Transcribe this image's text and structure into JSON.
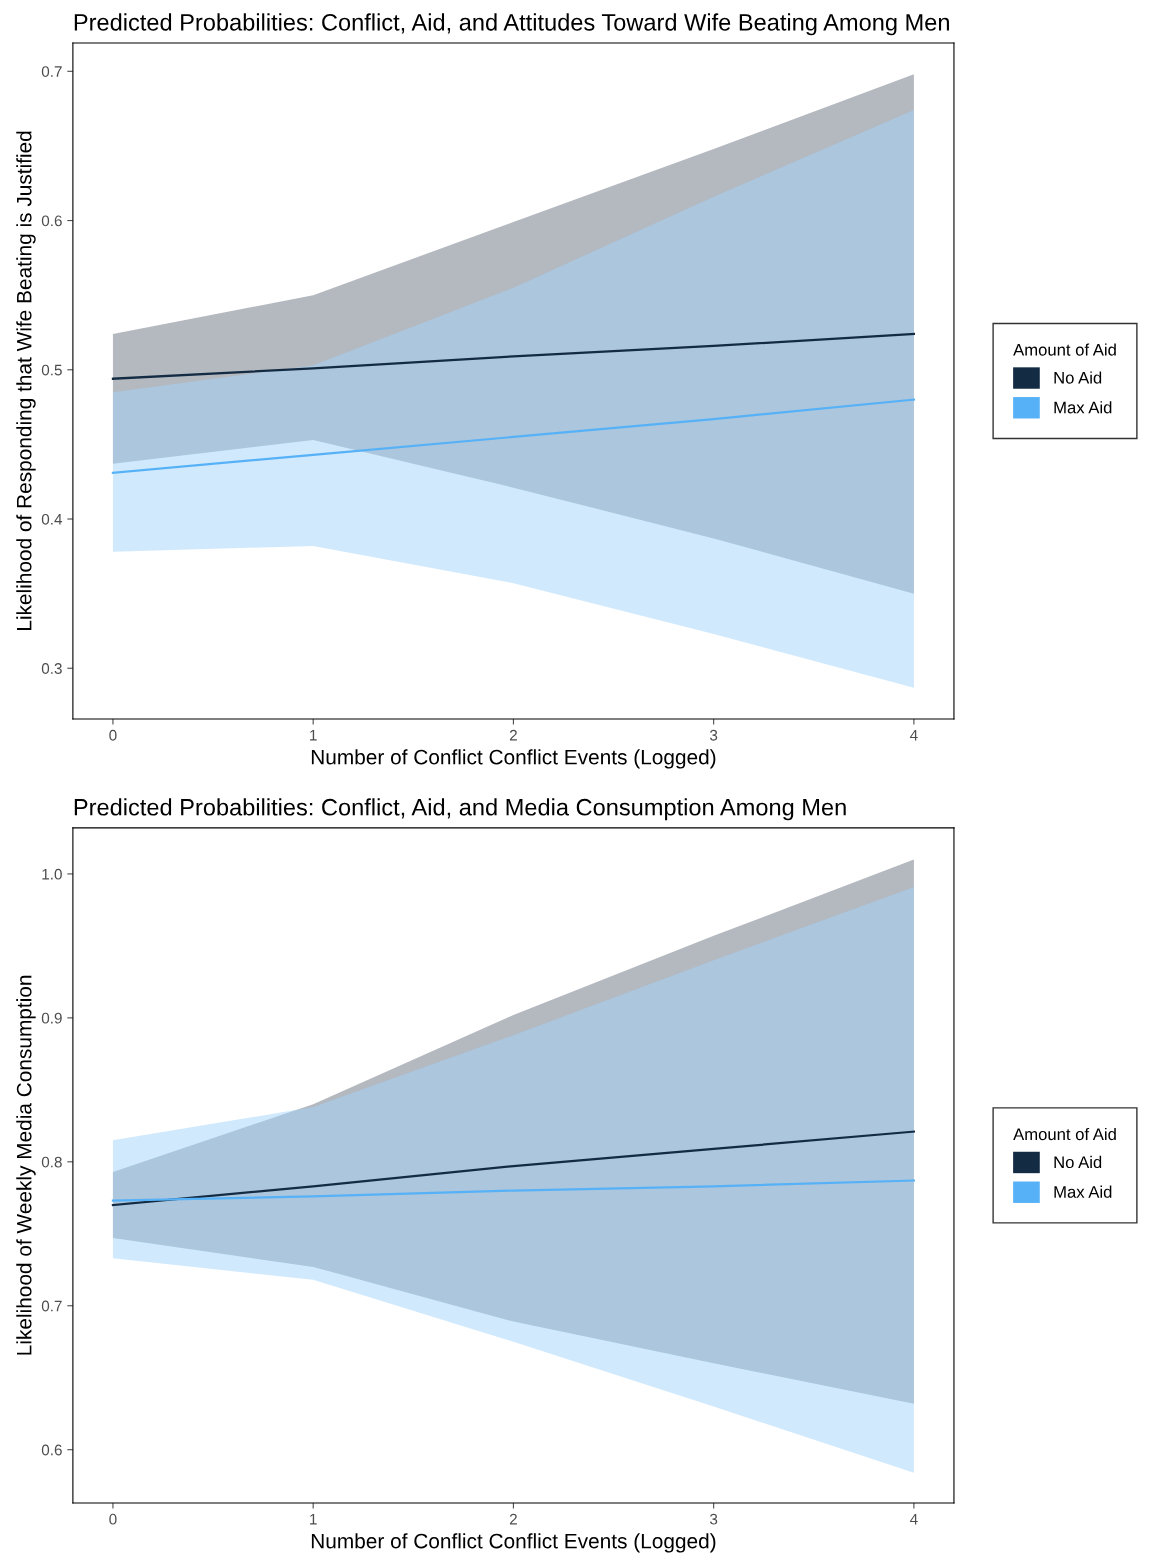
{
  "chart_data": [
    {
      "type": "line",
      "title": "Predicted Probabilities: Conflict, Aid, and Attitudes Toward Wife Beating Among Men",
      "xlabel": "Number of Conflict Conflict Events (Logged)",
      "ylabel": "Likelihood of Responding that Wife Beating is Justified",
      "legend_title": "Amount of Aid",
      "legend": "right",
      "grid": false,
      "x": [
        0,
        1,
        2,
        3,
        4
      ],
      "xlim": [
        -0.2,
        4.2
      ],
      "xticks": [
        0,
        1,
        2,
        3,
        4
      ],
      "ylim": [
        0.266,
        0.719
      ],
      "yticks": [
        0.3,
        0.4,
        0.5,
        0.6,
        0.7
      ],
      "series": [
        {
          "name": "No Aid",
          "color": "#132b43",
          "values": [
            0.494,
            0.501,
            0.509,
            0.516,
            0.524
          ],
          "lower": [
            0.437,
            0.453,
            0.421,
            0.387,
            0.35
          ],
          "upper": [
            0.524,
            0.55,
            0.599,
            0.648,
            0.698
          ]
        },
        {
          "name": "Max Aid",
          "color": "#56b1f7",
          "values": [
            0.431,
            0.443,
            0.455,
            0.467,
            0.48
          ],
          "lower": [
            0.378,
            0.382,
            0.357,
            0.323,
            0.287
          ],
          "upper": [
            0.485,
            0.503,
            0.555,
            0.616,
            0.674
          ]
        }
      ]
    },
    {
      "type": "line",
      "title": "Predicted Probabilities: Conflict, Aid, and Media Consumption Among Men",
      "xlabel": "Number of Conflict Conflict Events (Logged)",
      "ylabel": "Likelihood of Weekly Media Consumption",
      "legend_title": "Amount of Aid",
      "legend": "right",
      "grid": false,
      "x": [
        0,
        1,
        2,
        3,
        4
      ],
      "xlim": [
        -0.2,
        4.2
      ],
      "xticks": [
        0,
        1,
        2,
        3,
        4
      ],
      "ylim": [
        0.563,
        1.032
      ],
      "yticks": [
        0.6,
        0.7,
        0.8,
        0.9,
        {
          "value": 1.0,
          "label": "1.0"
        }
      ],
      "series": [
        {
          "name": "No Aid",
          "color": "#132b43",
          "values": [
            0.77,
            0.783,
            0.797,
            0.809,
            0.821
          ],
          "lower": [
            0.747,
            0.727,
            0.689,
            0.66,
            0.632
          ],
          "upper": [
            0.793,
            0.84,
            0.902,
            0.957,
            1.01
          ]
        },
        {
          "name": "Max Aid",
          "color": "#56b1f7",
          "values": [
            0.773,
            0.776,
            0.78,
            0.783,
            0.787
          ],
          "lower": [
            0.733,
            0.718,
            0.675,
            0.63,
            0.584
          ],
          "upper": [
            0.815,
            0.838,
            0.888,
            0.94,
            0.991
          ]
        }
      ]
    }
  ]
}
